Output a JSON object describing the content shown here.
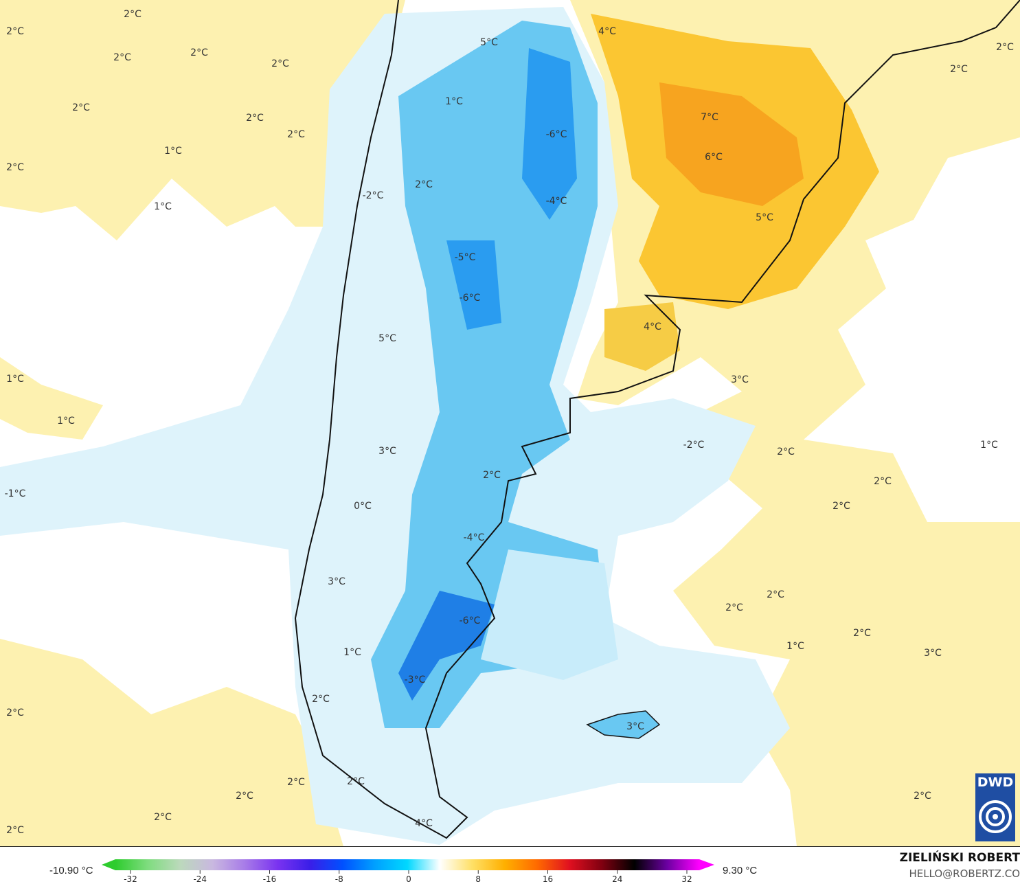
{
  "map": {
    "type": "temperature anomaly map",
    "region": "southern South America",
    "labels": [
      "2°C",
      "2°C",
      "2°C",
      "2°C",
      "2°C",
      "2°C",
      "2°C",
      "2°C",
      "1°C",
      "2°C",
      "1°C",
      "4°C",
      "5°C",
      "1°C",
      "2°C",
      "2°C",
      "-6°C",
      "7°C",
      "6°C",
      "2°C",
      "-2°C",
      "-4°C",
      "5°C",
      "-5°C",
      "-6°C",
      "4°C",
      "5°C",
      "1°C",
      "3°C",
      "1°C",
      "-2°C",
      "2°C",
      "1°C",
      "3°C",
      "2°C",
      "2°C",
      "-1°C",
      "0°C",
      "2°C",
      "-4°C",
      "3°C",
      "2°C",
      "2°C",
      "-6°C",
      "2°C",
      "1°C",
      "3°C",
      "1°C",
      "-3°C",
      "2°C",
      "2°C",
      "3°C",
      "2°C",
      "2°C",
      "2°C",
      "2°C",
      "2°C",
      "4°C",
      "2°C"
    ]
  },
  "colorbar": {
    "min_label": "-10.90 °C",
    "max_label": "9.30 °C",
    "ticks": [
      "-32",
      "-24",
      "-16",
      "-8",
      "0",
      "8",
      "16",
      "24",
      "32"
    ],
    "colors": [
      "#2ecc2e",
      "#7fdc7f",
      "#bcd9bc",
      "#c9b8e0",
      "#a77be8",
      "#7a33f0",
      "#3a1ee8",
      "#0050ff",
      "#00a0ff",
      "#00d8ff",
      "#ffffff",
      "#ffe066",
      "#ffb000",
      "#ff6a00",
      "#e01020",
      "#800010",
      "#000000",
      "#6a00a0",
      "#ff00ff"
    ]
  },
  "credit": {
    "author": "ZIELIŃSKI ROBERT",
    "email": "HELLO@ROBERTZ.CO",
    "logo": "DWD"
  }
}
